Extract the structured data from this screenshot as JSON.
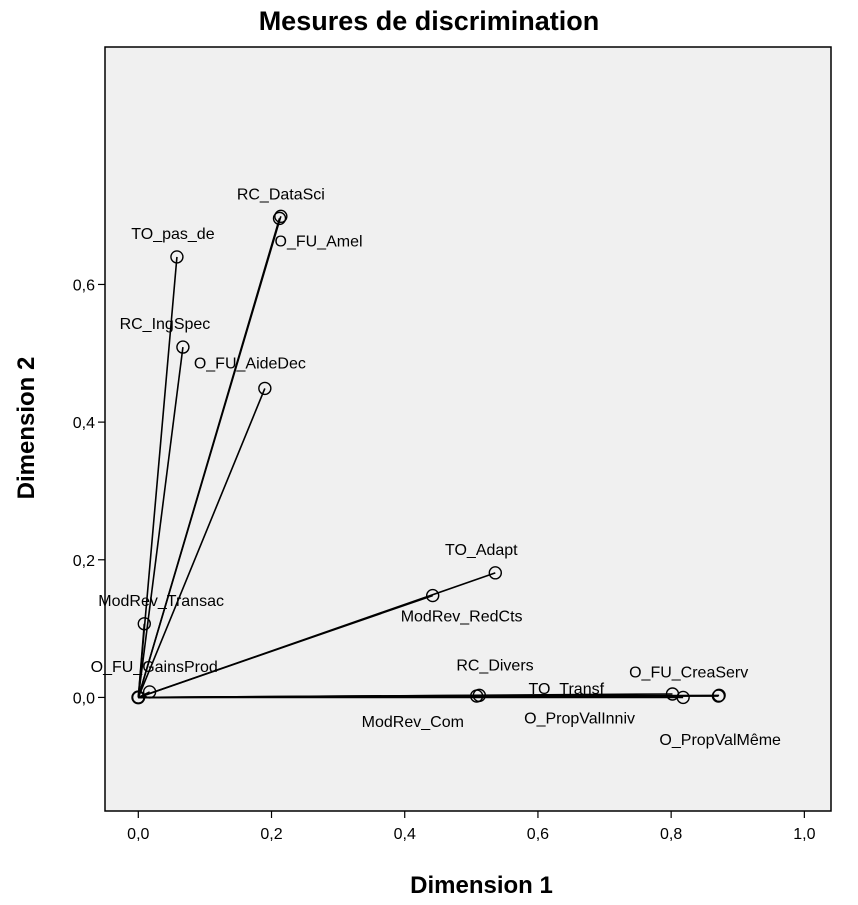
{
  "chart_data": {
    "type": "scatter",
    "title": "Mesures de discrimination",
    "xlabel": "Dimension 1",
    "ylabel": "Dimension 2",
    "xlim": [
      -0.05,
      1.04
    ],
    "ylim": [
      -0.165,
      0.945
    ],
    "x_ticks": [
      "0,0",
      "0,2",
      "0,4",
      "0,6",
      "0,8",
      "1,0"
    ],
    "y_ticks": [
      "0,0",
      "0,2",
      "0,4",
      "0,6"
    ],
    "x_tick_values": [
      0.0,
      0.2,
      0.4,
      0.6,
      0.8,
      1.0
    ],
    "y_tick_values": [
      0.0,
      0.2,
      0.4,
      0.6
    ],
    "grid": false,
    "plot_background": "#f0f0f0",
    "vectors_from_origin": true,
    "points": [
      {
        "label": "RC_DataSci",
        "x": 0.214,
        "y": 0.699
      },
      {
        "label": "O_FU_Amel",
        "x": 0.212,
        "y": 0.696
      },
      {
        "label": "TO_pas_de",
        "x": 0.058,
        "y": 0.64
      },
      {
        "label": "RC_IngSpec",
        "x": 0.067,
        "y": 0.509
      },
      {
        "label": "O_FU_AideDec",
        "x": 0.19,
        "y": 0.449
      },
      {
        "label": "TO_Adapt",
        "x": 0.536,
        "y": 0.181
      },
      {
        "label": "ModRev_RedCts",
        "x": 0.442,
        "y": 0.148
      },
      {
        "label": "ModRev_Transac",
        "x": 0.009,
        "y": 0.107
      },
      {
        "label": "O_FU_GainsProd",
        "x": 0.017,
        "y": 0.008
      },
      {
        "label": "RC_Divers",
        "x": 0.512,
        "y": 0.003
      },
      {
        "label": "ModRev_Com",
        "x": 0.508,
        "y": 0.002
      },
      {
        "label": "TO_Transf",
        "x": 0.802,
        "y": 0.005
      },
      {
        "label": "O_PropValInniv",
        "x": 0.818,
        "y": 0.0
      },
      {
        "label": "O_FU_CreaServ",
        "x": 0.872,
        "y": 0.003
      },
      {
        "label": "O_PropValMême",
        "x": 0.871,
        "y": 0.002
      }
    ]
  }
}
